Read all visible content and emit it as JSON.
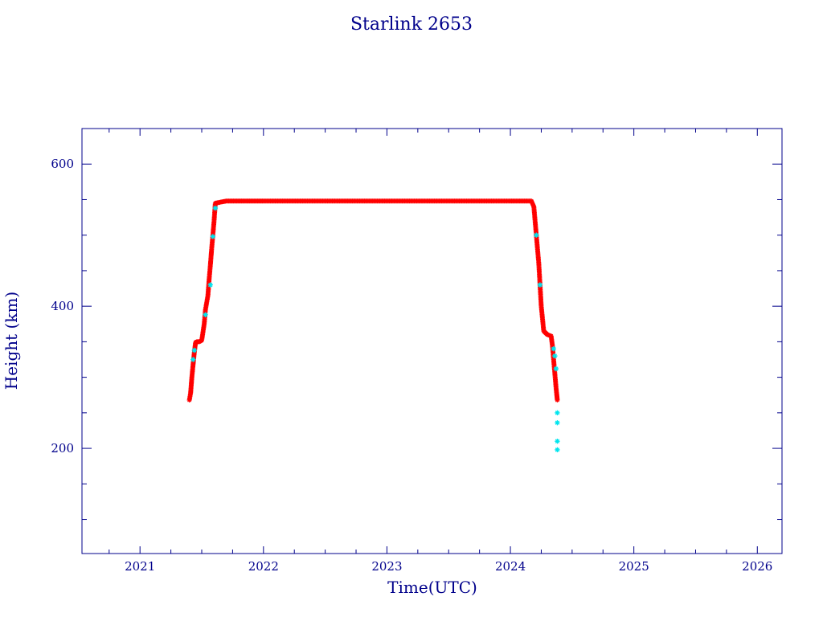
{
  "chart_data": {
    "type": "scatter",
    "title": "Starlink 2653",
    "xlabel": "Time(UTC)",
    "ylabel": "Height (km)",
    "xlim": [
      2020.53,
      2026.2
    ],
    "ylim": [
      52,
      650
    ],
    "x_ticks": [
      2021,
      2022,
      2023,
      2024,
      2025,
      2026
    ],
    "x_tick_labels": [
      "2021",
      "2022",
      "2023",
      "2024",
      "2025",
      "2026"
    ],
    "y_ticks": [
      200,
      400,
      600
    ],
    "y_tick_labels": [
      "200",
      "400",
      "600"
    ],
    "grid": false,
    "legend": "none",
    "colors": {
      "axis": "#00008b",
      "text": "#00008b",
      "primary": "#ff0000",
      "secondary": "#00e5ee",
      "line": "#00008b"
    },
    "series": [
      {
        "color": "#ff0000",
        "marker": "star",
        "x": [
          2021.4,
          2021.41,
          2021.42,
          2021.43,
          2021.44,
          2021.45,
          2021.46,
          2021.48,
          2021.5,
          2021.52,
          2021.53,
          2021.55,
          2021.56,
          2021.57,
          2021.58,
          2021.59,
          2021.6,
          2021.61,
          2021.7,
          2021.85,
          2022.0,
          2022.25,
          2022.5,
          2022.75,
          2023.0,
          2023.25,
          2023.5,
          2023.75,
          2024.0,
          2024.17,
          2024.19,
          2024.2,
          2024.21,
          2024.22,
          2024.23,
          2024.24,
          2024.25,
          2024.27,
          2024.3,
          2024.33,
          2024.34,
          2024.35,
          2024.36,
          2024.37,
          2024.38
        ],
        "y": [
          268,
          278,
          300,
          318,
          335,
          349,
          350,
          350,
          352,
          375,
          395,
          415,
          438,
          458,
          480,
          500,
          520,
          545,
          548,
          548,
          548,
          548,
          548,
          548,
          548,
          548,
          548,
          548,
          548,
          548,
          540,
          520,
          500,
          480,
          460,
          430,
          400,
          365,
          360,
          358,
          345,
          325,
          305,
          285,
          268
        ]
      },
      {
        "color": "#00e5ee",
        "marker": "star",
        "x": [
          2021.43,
          2021.44,
          2021.53,
          2021.57,
          2021.59,
          2021.61,
          2024.21,
          2024.24,
          2024.35,
          2024.36,
          2024.37,
          2024.38,
          2024.38,
          2024.38,
          2024.38
        ],
        "y": [
          325,
          338,
          388,
          430,
          498,
          538,
          500,
          430,
          340,
          330,
          312,
          250,
          236,
          210,
          198
        ]
      }
    ]
  }
}
